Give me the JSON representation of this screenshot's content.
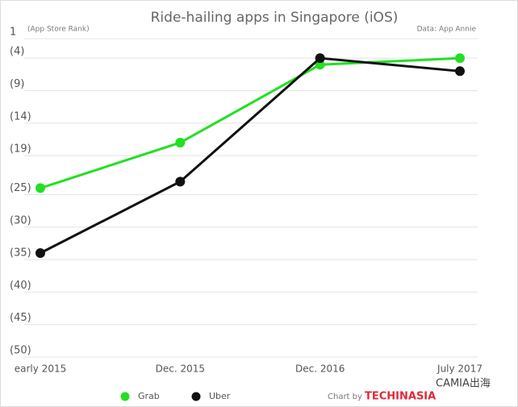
{
  "chart_data": {
    "type": "line",
    "title": "Ride-hailing apps in Singapore (iOS)",
    "y_axis_label": "(App Store Rank)",
    "source": "Data: App Annie",
    "credit": "Chart by",
    "logo": "TECHINASIA",
    "watermark": "CAMIA出海",
    "categories": [
      "early 2015",
      "Dec. 2015",
      "Dec. 2016",
      "July 2017"
    ],
    "series": [
      {
        "name": "Grab",
        "color": "#22e022",
        "values": [
          24,
          17,
          5,
          4
        ]
      },
      {
        "name": "Uber",
        "color": "#111111",
        "values": [
          34,
          23,
          4,
          6
        ]
      }
    ],
    "ylim": [
      50,
      1
    ],
    "yticks": [
      1,
      {
        "value": 4,
        "label": "(4)"
      },
      {
        "value": 9,
        "label": "(9)"
      },
      {
        "value": 14,
        "label": "(14)"
      },
      {
        "value": 19,
        "label": "(19)"
      },
      {
        "value": 25,
        "label": "(25)"
      },
      {
        "value": 30,
        "label": "(30)"
      },
      {
        "value": 35,
        "label": "(35)"
      },
      {
        "value": 40,
        "label": "(40)"
      },
      {
        "value": 45,
        "label": "(45)"
      },
      {
        "value": 50,
        "label": "(50)"
      }
    ],
    "grid": true,
    "legend": "bottom"
  }
}
